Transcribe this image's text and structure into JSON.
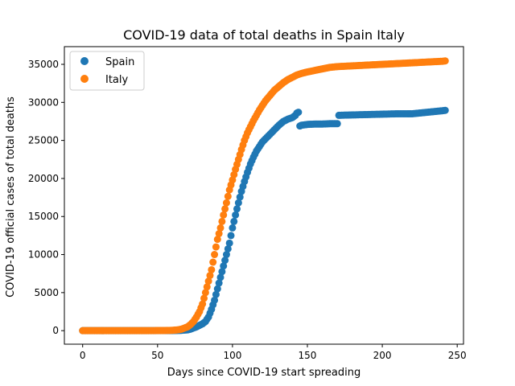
{
  "chart_data": {
    "type": "scatter",
    "title": "COVID-19 data of total deaths in Spain Italy",
    "xlabel": "Days since COVID-19 start spreading",
    "ylabel": "COVID-19 official cases of total deaths",
    "xlim": [
      -12.2,
      254.2
    ],
    "ylim": [
      -1778,
      37324
    ],
    "xticks": [
      0,
      50,
      100,
      150,
      200,
      250
    ],
    "yticks": [
      0,
      5000,
      10000,
      15000,
      20000,
      25000,
      30000,
      35000
    ],
    "grid": false,
    "legend_position": "top-left",
    "series": [
      {
        "name": "Spain",
        "color": "#1f77b4",
        "x": [
          0,
          40,
          60,
          65,
          70,
          72,
          74,
          76,
          78,
          80,
          82,
          84,
          86,
          88,
          90,
          92,
          94,
          96,
          98,
          100,
          102,
          104,
          106,
          108,
          110,
          112,
          114,
          116,
          118,
          120,
          122,
          125,
          128,
          131,
          134,
          137,
          140,
          142,
          143,
          144,
          145,
          146,
          150,
          155,
          160,
          165,
          168,
          170,
          171,
          180,
          190,
          200,
          210,
          220,
          225,
          230,
          235,
          240,
          242
        ],
        "y": [
          0,
          0,
          10,
          30,
          100,
          200,
          350,
          500,
          700,
          900,
          1200,
          1800,
          2800,
          4000,
          5500,
          7000,
          8500,
          10000,
          11500,
          13500,
          15200,
          16800,
          18300,
          19600,
          20800,
          21900,
          22800,
          23600,
          24200,
          24800,
          25200,
          25800,
          26400,
          27000,
          27500,
          27800,
          28000,
          28300,
          28600,
          28700,
          26900,
          27000,
          27100,
          27150,
          27150,
          27200,
          27200,
          27200,
          28300,
          28350,
          28400,
          28450,
          28500,
          28500,
          28600,
          28700,
          28800,
          28900,
          28950
        ]
      },
      {
        "name": "Italy",
        "color": "#ff7f0e",
        "x": [
          0,
          20,
          40,
          55,
          60,
          62,
          64,
          66,
          68,
          70,
          72,
          74,
          76,
          78,
          80,
          82,
          84,
          86,
          88,
          90,
          92,
          94,
          96,
          98,
          100,
          102,
          104,
          106,
          108,
          110,
          112,
          114,
          116,
          118,
          120,
          122,
          125,
          128,
          131,
          134,
          137,
          140,
          143,
          146,
          150,
          155,
          160,
          165,
          170,
          175,
          180,
          190,
          200,
          210,
          220,
          230,
          240,
          242
        ],
        "y": [
          0,
          0,
          0,
          20,
          50,
          80,
          120,
          200,
          350,
          500,
          800,
          1200,
          1800,
          2500,
          3500,
          5000,
          6500,
          8000,
          10000,
          12000,
          13500,
          15200,
          16800,
          18500,
          19800,
          21200,
          22500,
          23800,
          25000,
          26000,
          26800,
          27600,
          28300,
          29000,
          29600,
          30200,
          30900,
          31600,
          32100,
          32600,
          33000,
          33300,
          33600,
          33800,
          34000,
          34200,
          34400,
          34600,
          34700,
          34750,
          34800,
          34900,
          35000,
          35100,
          35200,
          35300,
          35400,
          35450
        ]
      }
    ]
  }
}
